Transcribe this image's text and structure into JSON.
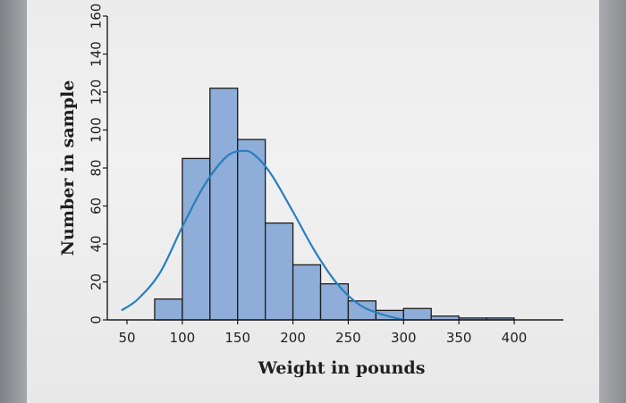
{
  "chart_data": {
    "type": "bar",
    "subtype": "histogram",
    "xlabel": "Weight in pounds",
    "ylabel": "Number in sample",
    "xlim": [
      45,
      430
    ],
    "ylim": [
      0,
      160
    ],
    "xticks": [
      50,
      100,
      150,
      200,
      250,
      300,
      350,
      400
    ],
    "yticks": [
      0,
      20,
      40,
      60,
      80,
      100,
      120,
      140,
      160
    ],
    "bins": [
      {
        "x0": 75,
        "x1": 100,
        "value": 11
      },
      {
        "x0": 100,
        "x1": 125,
        "value": 85
      },
      {
        "x0": 125,
        "x1": 150,
        "value": 122
      },
      {
        "x0": 150,
        "x1": 175,
        "value": 95
      },
      {
        "x0": 175,
        "x1": 200,
        "value": 51
      },
      {
        "x0": 200,
        "x1": 225,
        "value": 29
      },
      {
        "x0": 225,
        "x1": 250,
        "value": 19
      },
      {
        "x0": 250,
        "x1": 275,
        "value": 10
      },
      {
        "x0": 275,
        "x1": 300,
        "value": 5
      },
      {
        "x0": 300,
        "x1": 325,
        "value": 6
      },
      {
        "x0": 325,
        "x1": 350,
        "value": 2
      },
      {
        "x0": 350,
        "x1": 375,
        "value": 1
      },
      {
        "x0": 375,
        "x1": 400,
        "value": 1
      }
    ],
    "curve": {
      "type": "normal",
      "x": [
        45,
        60,
        80,
        100,
        120,
        140,
        155,
        165,
        180,
        200,
        220,
        240,
        260,
        280,
        300
      ],
      "y": [
        5,
        11,
        25,
        49,
        71,
        86,
        89,
        87,
        77,
        57,
        36,
        19,
        8,
        3,
        0
      ]
    },
    "colors": {
      "bar_fill": "#8eadd8",
      "bar_stroke": "#1c1c1c",
      "curve": "#2a7fbf"
    },
    "grid": false
  }
}
